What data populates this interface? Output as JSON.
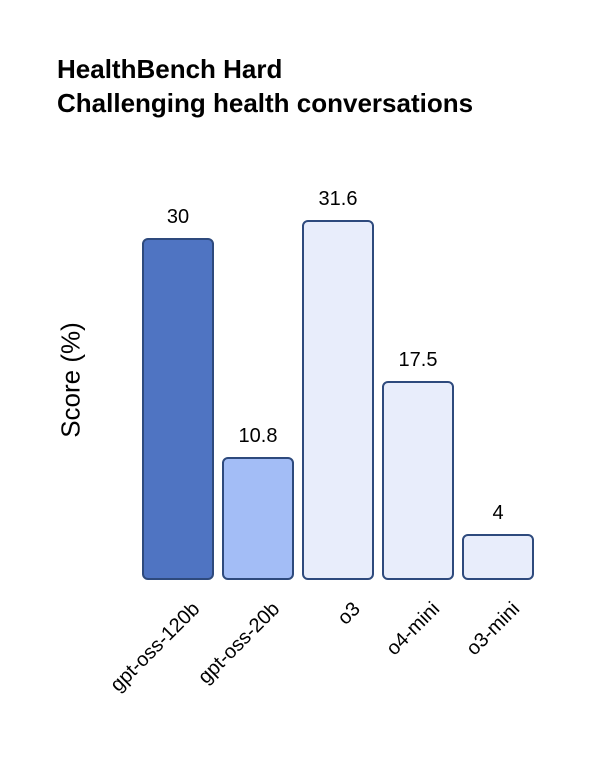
{
  "title": {
    "line1": "HealthBench Hard",
    "line2": "Challenging health conversations"
  },
  "chart_data": {
    "type": "bar",
    "title": "HealthBench Hard",
    "subtitle": "Challenging health conversations",
    "categories": [
      "gpt-oss-120b",
      "gpt-oss-20b",
      "o3",
      "o4-mini",
      "o3-mini"
    ],
    "values": [
      30,
      10.8,
      31.6,
      17.5,
      4
    ],
    "value_labels": [
      "30",
      "10.8",
      "31.6",
      "17.5",
      "4"
    ],
    "xlabel": "",
    "ylabel": "Score (%)",
    "ylim": [
      0,
      31.6
    ],
    "grid": false,
    "legend": "none",
    "y_axis_visible": false,
    "x_axis_visible": false,
    "background_color": "#ffffff",
    "bar_colors": [
      "#4f74c2",
      "#a3bdf6",
      "#e8edfb",
      "#e8edfb",
      "#e8edfb"
    ],
    "bar_border_color": "#2e4a7d",
    "text_color": "#000000"
  }
}
